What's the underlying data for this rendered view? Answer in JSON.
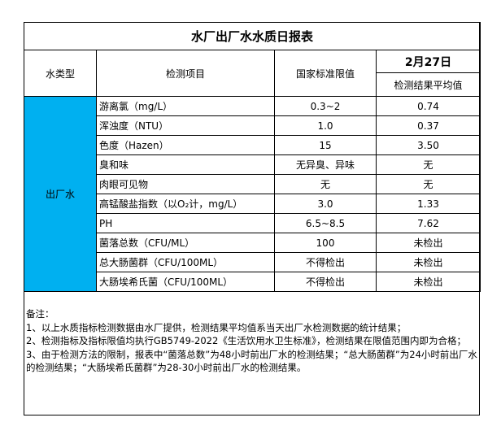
{
  "title": "水厂出厂水水质日报表",
  "headers": {
    "type": "水类型",
    "item": "检测项目",
    "limit": "国家标准限值",
    "date": "2月27日",
    "result": "检测结果平均值"
  },
  "water_type": "出厂水",
  "rows": [
    {
      "item": "游离氯（mg/L）",
      "limit": "0.3~2",
      "result": "0.74"
    },
    {
      "item": "浑浊度（NTU）",
      "limit": "1.0",
      "result": "0.37"
    },
    {
      "item": "色度（Hazen）",
      "limit": "15",
      "result": "3.50"
    },
    {
      "item": "臭和味",
      "limit": "无异臭、异味",
      "result": "无"
    },
    {
      "item": "肉眼可见物",
      "limit": "无",
      "result": "无"
    },
    {
      "item": "高锰酸盐指数（以O₂计，mg/L）",
      "limit": "3.0",
      "result": "1.33"
    },
    {
      "item": "PH",
      "limit": "6.5~8.5",
      "result": "7.62"
    },
    {
      "item": "菌落总数（CFU/ML）",
      "limit": "100",
      "result": "未检出"
    },
    {
      "item": "总大肠菌群（CFU/100ML）",
      "limit": "不得检出",
      "result": "未检出"
    },
    {
      "item": "大肠埃希氏菌（CFU/100ML）",
      "limit": "不得检出",
      "result": "未检出"
    }
  ],
  "notes": {
    "heading": "备注：",
    "lines": [
      "1、以上水质指标检测数据由水厂提供，检测结果平均值系当天出厂水检测数据的统计结果；",
      "2、检测指标及指标限值均执行GB5749-2022《生活饮用水卫生标准》，检测结果在限值范围内即为合格；",
      "3、由于检测方法的限制，报表中“菌落总数”为48小时前出厂水的检测结果；“总大肠菌群”为24小时前出厂水的检测结果；“大肠埃希氏菌群”为28-30小时前出厂水的检测结果。"
    ]
  },
  "colors": {
    "type_cell": "#00b0f0"
  }
}
